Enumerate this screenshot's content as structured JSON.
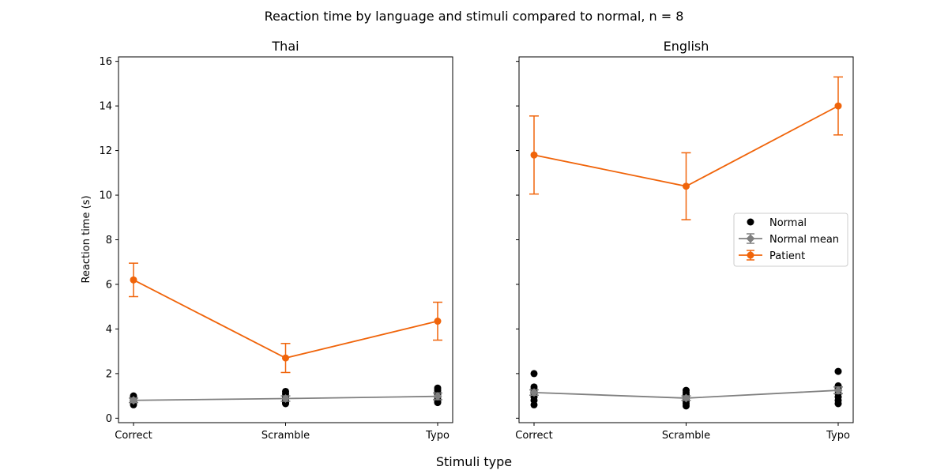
{
  "figure": {
    "suptitle": "Reaction time by language and stimuli compared to normal, n = 8",
    "xlabel": "Stimuli type"
  },
  "chart_data": [
    {
      "type": "line",
      "title": "Thai",
      "ylabel": "Reaction time (s)",
      "categories": [
        "Correct",
        "Scramble",
        "Typo"
      ],
      "ylim": [
        -0.2,
        16.2
      ],
      "yticks": [
        0,
        2,
        4,
        6,
        8,
        10,
        12,
        14,
        16
      ],
      "normal_points": [
        [
          0.6,
          0.7,
          0.75,
          0.8,
          0.85,
          0.9,
          0.95,
          1.0
        ],
        [
          0.65,
          0.7,
          0.8,
          0.85,
          0.95,
          1.0,
          1.1,
          1.2
        ],
        [
          0.7,
          0.75,
          0.85,
          0.95,
          1.05,
          1.15,
          1.25,
          1.35
        ]
      ],
      "normal_mean": {
        "values": [
          0.8,
          0.88,
          0.98
        ],
        "err": [
          0.1,
          0.12,
          0.15
        ]
      },
      "patient": {
        "values": [
          6.2,
          2.7,
          4.35
        ],
        "err": [
          0.75,
          0.65,
          0.85
        ]
      },
      "colors": {
        "normal": "#000000",
        "mean": "#808080",
        "patient": "#f0640a"
      }
    },
    {
      "type": "line",
      "title": "English",
      "ylabel": "",
      "categories": [
        "Correct",
        "Scramble",
        "Typo"
      ],
      "ylim": [
        -0.2,
        16.2
      ],
      "yticks": [
        0,
        2,
        4,
        6,
        8,
        10,
        12,
        14,
        16
      ],
      "normal_points": [
        [
          0.6,
          0.8,
          0.95,
          1.1,
          1.2,
          1.3,
          1.4,
          2.0
        ],
        [
          0.55,
          0.65,
          0.75,
          0.85,
          0.95,
          1.05,
          1.15,
          1.25
        ],
        [
          0.65,
          0.8,
          0.95,
          1.1,
          1.25,
          1.35,
          1.45,
          2.1
        ]
      ],
      "normal_mean": {
        "values": [
          1.15,
          0.9,
          1.25
        ],
        "err": [
          0.12,
          0.1,
          0.15
        ]
      },
      "patient": {
        "values": [
          11.8,
          10.4,
          14.0
        ],
        "err": [
          1.75,
          1.5,
          1.3
        ]
      },
      "colors": {
        "normal": "#000000",
        "mean": "#808080",
        "patient": "#f0640a"
      }
    }
  ],
  "legend": {
    "placement": "right",
    "entries": [
      "Normal",
      "Normal mean",
      "Patient"
    ]
  }
}
